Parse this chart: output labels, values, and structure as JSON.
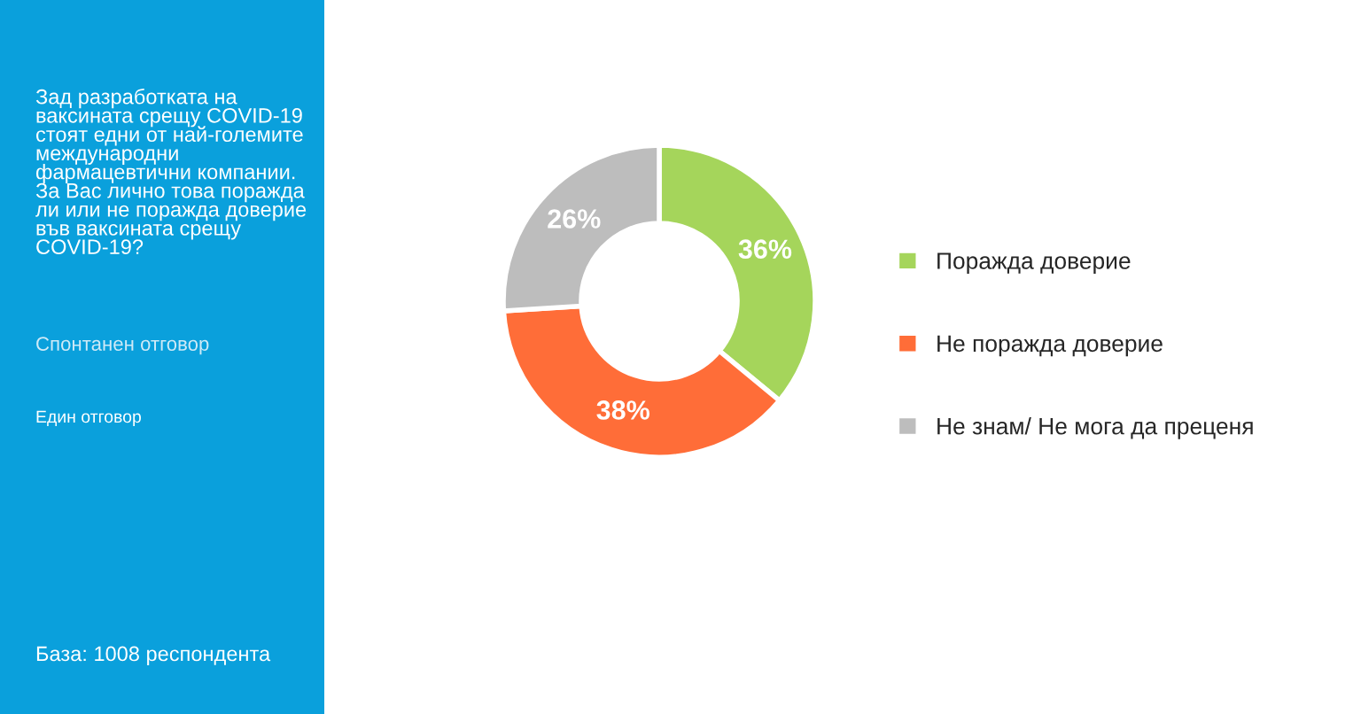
{
  "chart_data": {
    "type": "donut",
    "title": "Зад разработката на ваксината срещу COVID-19 стоят едни от най-големите международни фармацевтични компании. За Вас лично това поражда ли или не поражда доверие във ваксината срещу COVID-19?",
    "subtitle": "Спонтанен отговор",
    "annotations": [
      "Един отговор",
      "База: 1008 респондента"
    ],
    "categories": [
      "Поражда доверие",
      "Не поражда доверие",
      "Не знам/ Не мога да преценя"
    ],
    "values": [
      36,
      38,
      26
    ],
    "value_labels": [
      "36%",
      "38%",
      "26%"
    ],
    "colors": [
      "#a5d55b",
      "#ff6d38",
      "#bdbdbd"
    ],
    "legend": "right"
  }
}
